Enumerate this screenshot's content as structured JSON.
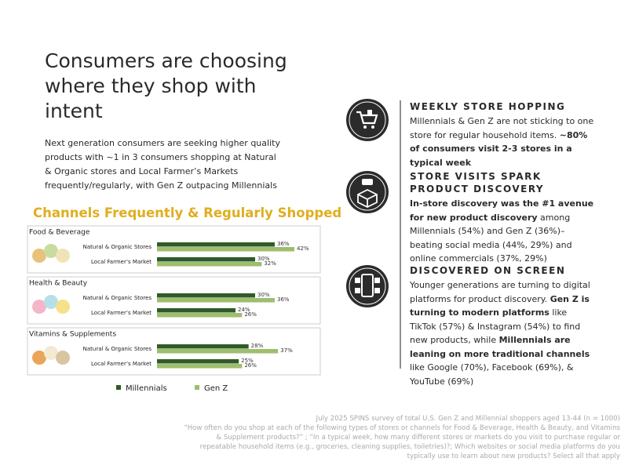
{
  "title": "Consumers are choosing where they shop with intent",
  "intro": "Next generation consumers are seeking higher quality products with ~1 in 3 consumers shopping at Natural & Organic stores and Local Farmer’s Markets frequently/regularly, with Gen Z outpacing Millennials",
  "chart_heading": "Channels Frequently & Regularly Shopped",
  "chart_data": [
    {
      "type": "bar",
      "title": "Food & Beverage",
      "categories": [
        "Natural & Organic Stores",
        "Local Farmer’s Market"
      ],
      "series": [
        {
          "name": "Millennials",
          "color": "#2f5b27",
          "values": [
            36,
            30
          ],
          "value_labels": [
            "36%",
            "30%"
          ]
        },
        {
          "name": "Gen Z",
          "color": "#9ebe6e",
          "values": [
            42,
            32
          ],
          "value_labels": [
            "42%",
            "32%"
          ]
        }
      ]
    },
    {
      "type": "bar",
      "title": "Health & Beauty",
      "categories": [
        "Natural & Organic Stores",
        "Local Farmer’s Market"
      ],
      "series": [
        {
          "name": "Millennials",
          "color": "#2f5b27",
          "values": [
            30,
            24
          ],
          "value_labels": [
            "30%",
            "24%"
          ]
        },
        {
          "name": "Gen Z",
          "color": "#9ebe6e",
          "values": [
            36,
            26
          ],
          "value_labels": [
            "36%",
            "26%"
          ]
        }
      ]
    },
    {
      "type": "bar",
      "title": "Vitamins & Supplements",
      "categories": [
        "Natural & Organic Stores",
        "Local Farmer’s Market"
      ],
      "series": [
        {
          "name": "Millennials",
          "color": "#2f5b27",
          "values": [
            28,
            25
          ],
          "value_labels": [
            "28%",
            "25%"
          ]
        },
        {
          "name": "Gen Z",
          "color": "#9ebe6e",
          "values": [
            37,
            26
          ],
          "value_labels": [
            "37%",
            "26%"
          ]
        }
      ]
    }
  ],
  "sections": [
    {
      "heading": "WEEKLY STORE HOPPING",
      "body": [
        "Millennials & Gen Z are not sticking to one store for regular household items. ",
        "~80% of consumers visit 2-3 stores in a typical week"
      ]
    },
    {
      "heading": "STORE VISITS SPARK PRODUCT DISCOVERY",
      "body": [
        "In-store discovery was the #1 avenue for new product discovery",
        " among Millennials (54%) and Gen Z (36%)– beating social media (44%, 29%) and online commercials (37%, 29%)"
      ]
    },
    {
      "heading": "DISCOVERED ON SCREEN",
      "body": [
        "Younger generations are turning to digital platforms for product discovery. ",
        "Gen Z is turning to modern platforms",
        " like TikTok (57%) & Instagram (54%) to find new products, while ",
        "Millennials are leaning on more traditional channels",
        " like Google (70%), Facebook (69%), & YouTube (69%)"
      ]
    }
  ],
  "footnote": [
    "July 2025 SPINS survey of total U.S. Gen Z and Millennial shoppers aged 13-44 (n = 1000)",
    "“How often do you shop at each of the following types of stores or channels for Food & Beverage, Health & Beauty, and Vitamins & Supplement products?” ; “In a typical week, how many different stores or markets do you visit to purchase regular or repeatable household items (e.g., groceries, cleaning supplies, toiletries)?; Which websites or social media platforms do you typically use to learn about new products? Select all that apply"
  ]
}
